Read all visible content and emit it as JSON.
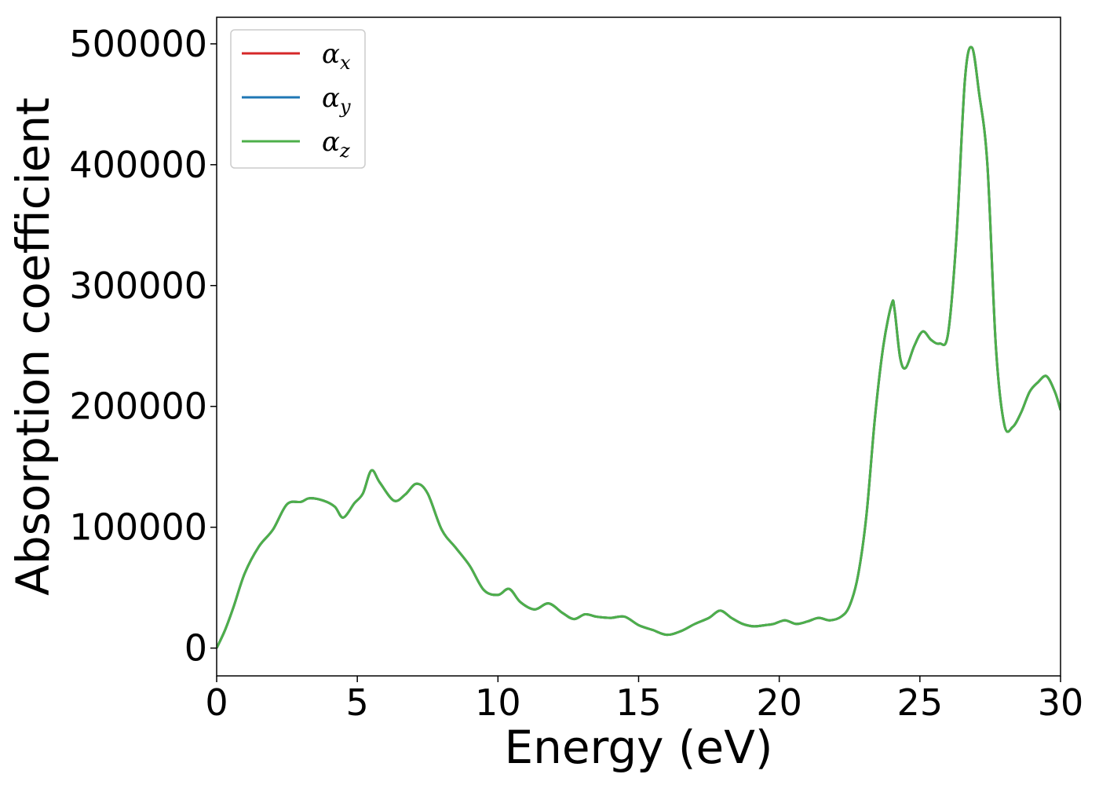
{
  "chart_data": {
    "type": "line",
    "xlabel": "Energy (eV)",
    "ylabel": "Absorption coefficient",
    "xlim": [
      0,
      30
    ],
    "ylim": [
      -23000,
      522000
    ],
    "xticks": [
      0,
      5,
      10,
      15,
      20,
      25,
      30
    ],
    "xtick_labels": [
      "0",
      "5",
      "10",
      "15",
      "20",
      "25",
      "30"
    ],
    "yticks": [
      0,
      100000,
      200000,
      300000,
      400000,
      500000
    ],
    "ytick_labels": [
      "0",
      "100000",
      "200000",
      "300000",
      "400000",
      "500000"
    ],
    "grid": false,
    "legend": {
      "placement": "top-left",
      "entries": [
        {
          "symbol": "α",
          "subscript": "x",
          "color": "#d62728"
        },
        {
          "symbol": "α",
          "subscript": "y",
          "color": "#1f77b4"
        },
        {
          "symbol": "α",
          "subscript": "z",
          "color": "#4daf4a"
        }
      ]
    },
    "x": [
      0,
      0.3,
      0.6,
      1.0,
      1.5,
      2.0,
      2.5,
      3.0,
      3.3,
      3.8,
      4.2,
      4.5,
      4.9,
      5.2,
      5.5,
      5.8,
      6.3,
      6.7,
      7.1,
      7.5,
      8.0,
      8.5,
      9.0,
      9.5,
      10.0,
      10.4,
      10.8,
      11.3,
      11.8,
      12.3,
      12.7,
      13.1,
      13.5,
      14.0,
      14.5,
      15.0,
      15.5,
      16.0,
      16.5,
      17.0,
      17.5,
      17.9,
      18.3,
      18.7,
      19.1,
      19.5,
      19.8,
      20.2,
      20.6,
      21.0,
      21.4,
      21.8,
      22.2,
      22.5,
      22.8,
      23.1,
      23.4,
      23.7,
      24.0,
      24.1,
      24.3,
      24.5,
      24.8,
      25.1,
      25.4,
      25.7,
      26.0,
      26.3,
      26.6,
      26.85,
      27.1,
      27.4,
      27.7,
      28.0,
      28.3,
      28.6,
      28.9,
      29.2,
      29.5,
      29.8,
      30.0
    ],
    "series": [
      {
        "color": "#d62728",
        "values": [
          0,
          15000,
          34000,
          62000,
          84000,
          98000,
          119000,
          121000,
          124000,
          122000,
          117000,
          108000,
          120000,
          128000,
          147000,
          137000,
          122000,
          127000,
          136000,
          128000,
          98000,
          83000,
          68000,
          48000,
          44000,
          49000,
          38000,
          32000,
          37000,
          29000,
          24000,
          28000,
          26000,
          25000,
          26000,
          19000,
          15000,
          11000,
          14000,
          20000,
          25000,
          31000,
          25000,
          20000,
          18000,
          19000,
          20000,
          23000,
          20000,
          22000,
          25000,
          23000,
          26000,
          35000,
          60000,
          110000,
          190000,
          250000,
          285000,
          280000,
          240000,
          232000,
          250000,
          262000,
          255000,
          252000,
          260000,
          340000,
          470000,
          497000,
          460000,
          400000,
          250000,
          185000,
          183000,
          195000,
          212000,
          220000,
          225000,
          212000,
          197000
        ]
      },
      {
        "color": "#1f77b4",
        "values": [
          0,
          15000,
          34000,
          62000,
          84000,
          98000,
          119000,
          121000,
          124000,
          122000,
          117000,
          108000,
          120000,
          128000,
          147000,
          137000,
          122000,
          127000,
          136000,
          128000,
          98000,
          83000,
          68000,
          48000,
          44000,
          49000,
          38000,
          32000,
          37000,
          29000,
          24000,
          28000,
          26000,
          25000,
          26000,
          19000,
          15000,
          11000,
          14000,
          20000,
          25000,
          31000,
          25000,
          20000,
          18000,
          19000,
          20000,
          23000,
          20000,
          22000,
          25000,
          23000,
          26000,
          35000,
          60000,
          110000,
          190000,
          250000,
          285000,
          280000,
          240000,
          232000,
          250000,
          262000,
          255000,
          252000,
          260000,
          340000,
          470000,
          497000,
          460000,
          400000,
          250000,
          185000,
          183000,
          195000,
          212000,
          220000,
          225000,
          212000,
          197000
        ]
      },
      {
        "color": "#4daf4a",
        "values": [
          0,
          15000,
          34000,
          62000,
          84000,
          98000,
          119000,
          121000,
          124000,
          122000,
          117000,
          108000,
          120000,
          128000,
          147000,
          137000,
          122000,
          127000,
          136000,
          128000,
          98000,
          83000,
          68000,
          48000,
          44000,
          49000,
          38000,
          32000,
          37000,
          29000,
          24000,
          28000,
          26000,
          25000,
          26000,
          19000,
          15000,
          11000,
          14000,
          20000,
          25000,
          31000,
          25000,
          20000,
          18000,
          19000,
          20000,
          23000,
          20000,
          22000,
          25000,
          23000,
          26000,
          35000,
          60000,
          110000,
          190000,
          250000,
          285000,
          280000,
          240000,
          232000,
          250000,
          262000,
          255000,
          252000,
          260000,
          340000,
          470000,
          497000,
          460000,
          400000,
          250000,
          185000,
          183000,
          195000,
          212000,
          220000,
          225000,
          212000,
          197000
        ]
      }
    ]
  }
}
